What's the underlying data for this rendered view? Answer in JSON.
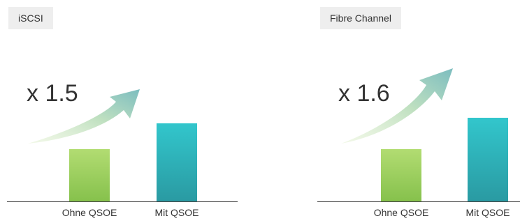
{
  "chart_data": [
    {
      "type": "bar",
      "tag": "iSCSI",
      "multiplier": "x 1.5",
      "categories": [
        "Ohne QSOE",
        "Mit QSOE"
      ],
      "values": [
        1.0,
        1.5
      ],
      "colors": [
        "#9acd5c",
        "#2fb5bb"
      ]
    },
    {
      "type": "bar",
      "tag": "Fibre Channel",
      "multiplier": "x 1.6",
      "categories": [
        "Ohne QSOE",
        "Mit QSOE"
      ],
      "values": [
        1.0,
        1.6
      ],
      "colors": [
        "#9acd5c",
        "#2fb5bb"
      ]
    }
  ]
}
